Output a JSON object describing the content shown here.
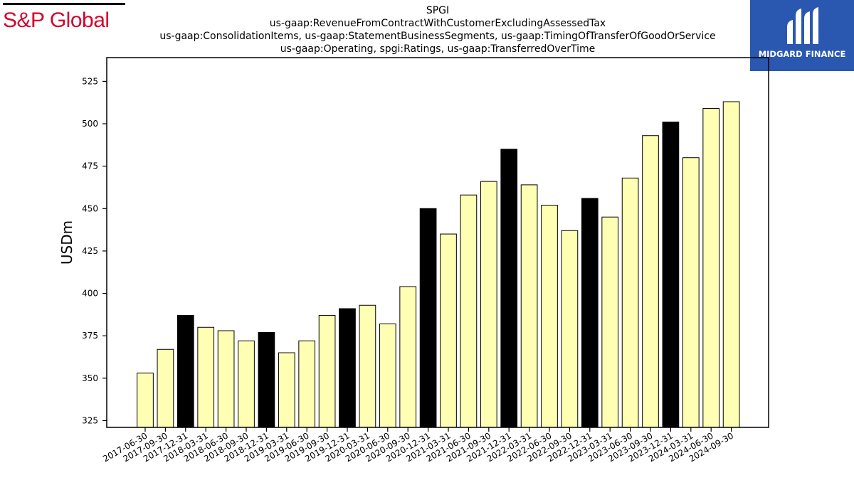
{
  "logos": {
    "left_text": "S&P Global",
    "right_text": "MIDGARD FINANCE",
    "left_color": "#d6002a",
    "right_bg": "#2a57b0"
  },
  "chart_data": {
    "type": "bar",
    "title_lines": [
      "SPGI",
      "us-gaap:RevenueFromContractWithCustomerExcludingAssessedTax",
      "us-gaap:ConsolidationItems, us-gaap:StatementBusinessSegments, us-gaap:TimingOfTransferOfGoodOrService",
      "us-gaap:Operating, spgi:Ratings, us-gaap:TransferredOverTime"
    ],
    "ylabel": "USDm",
    "ylim": [
      321,
      539
    ],
    "yticks": [
      325,
      350,
      375,
      400,
      425,
      450,
      475,
      500,
      525
    ],
    "colors": {
      "normal": "#ffffb3",
      "q4": "#000000"
    },
    "categories": [
      "2017-06-30",
      "2017-09-30",
      "2017-12-31",
      "2018-03-31",
      "2018-06-30",
      "2018-09-30",
      "2018-12-31",
      "2019-03-31",
      "2019-06-30",
      "2019-09-30",
      "2019-12-31",
      "2020-03-31",
      "2020-06-30",
      "2020-09-30",
      "2020-12-31",
      "2021-03-31",
      "2021-06-30",
      "2021-09-30",
      "2021-12-31",
      "2022-03-31",
      "2022-06-30",
      "2022-09-30",
      "2022-12-31",
      "2023-03-31",
      "2023-06-30",
      "2023-09-30",
      "2023-12-31",
      "2024-03-31",
      "2024-06-30",
      "2024-09-30"
    ],
    "values": [
      353,
      367,
      387,
      380,
      378,
      372,
      377,
      365,
      372,
      387,
      391,
      393,
      382,
      404,
      450,
      435,
      458,
      466,
      485,
      464,
      452,
      437,
      456,
      445,
      468,
      493,
      501,
      480,
      509,
      513
    ]
  }
}
